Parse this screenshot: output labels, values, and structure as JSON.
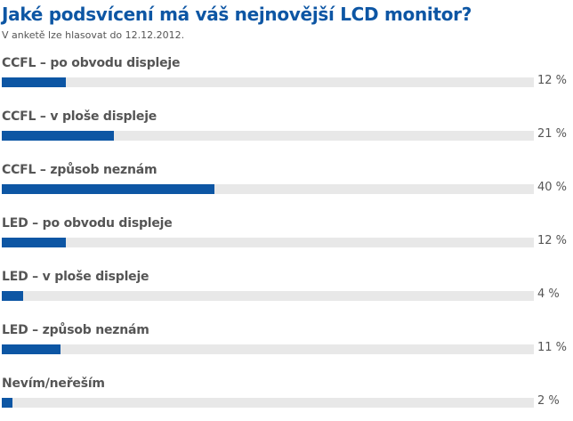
{
  "header": {
    "title": "Jaké podsvícení má váš nejnovější LCD monitor?",
    "subtitle": "V anketě lze hlasovat do 12.12.2012."
  },
  "colors": {
    "accent": "#0d56a4",
    "track": "#e8e8e8",
    "text": "#555555"
  },
  "poll": {
    "options": [
      {
        "label": "CCFL – po obvodu displeje",
        "percent": 12,
        "percent_label": "12 %"
      },
      {
        "label": "CCFL – v ploše displeje",
        "percent": 21,
        "percent_label": "21 %"
      },
      {
        "label": "CCFL – způsob neznám",
        "percent": 40,
        "percent_label": "40 %"
      },
      {
        "label": "LED – po obvodu displeje",
        "percent": 12,
        "percent_label": "12 %"
      },
      {
        "label": "LED – v ploše displeje",
        "percent": 4,
        "percent_label": "4 %"
      },
      {
        "label": "LED – způsob neznám",
        "percent": 11,
        "percent_label": "11 %"
      },
      {
        "label": "Nevím/neřeším",
        "percent": 2,
        "percent_label": "2 %"
      }
    ]
  },
  "chart_data": {
    "type": "bar",
    "orientation": "horizontal",
    "title": "Jaké podsvícení má váš nejnovější LCD monitor?",
    "subtitle": "V anketě lze hlasovat do 12.12.2012.",
    "categories": [
      "CCFL – po obvodu displeje",
      "CCFL – v ploše displeje",
      "CCFL – způsob neznám",
      "LED – po obvodu displeje",
      "LED – v ploše displeje",
      "LED – způsob neznám",
      "Nevím/neřeším"
    ],
    "values": [
      12,
      21,
      40,
      12,
      4,
      11,
      2
    ],
    "unit": "%",
    "xlabel": "",
    "ylabel": "",
    "xlim": [
      0,
      100
    ],
    "grid": false,
    "legend": null
  }
}
